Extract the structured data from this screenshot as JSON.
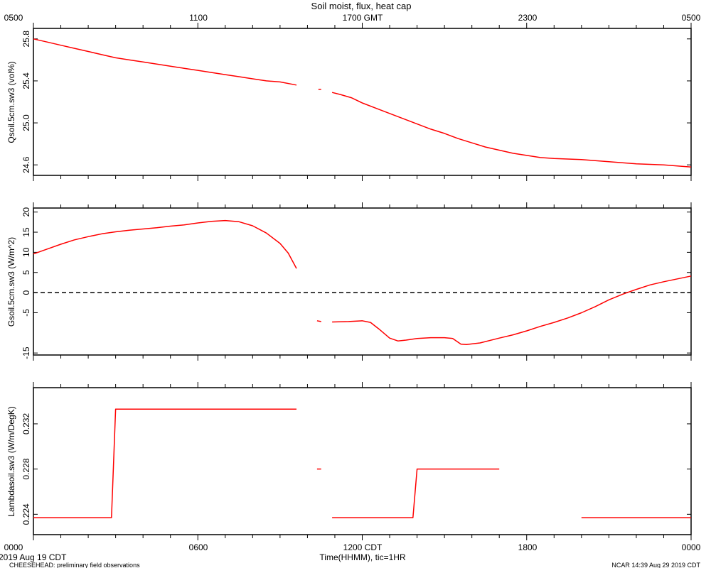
{
  "figure": {
    "title": "Soil moist, flux, heat cap",
    "top_ticks": [
      "0500",
      "1100",
      "1700 GMT",
      "2300",
      "0500"
    ],
    "bottom_ticks": [
      "0000",
      "0600",
      "1200 CDT",
      "1800",
      "0000"
    ],
    "xlabel": "Time(HHMM), tic=1HR",
    "date_label": "2019 Aug 19 CDT",
    "footer_left": "CHEESEHEAD: preliminary field observations",
    "footer_right": "NCAR 14:39 Aug 29 2019 CDT"
  },
  "colors": {
    "series": "#ff0000",
    "axis": "#000000",
    "zero_line": "#000000"
  },
  "chart_data": [
    {
      "type": "line",
      "ylabel": "Qsoil.5cm.sw3 (vol%)",
      "xlim": [
        0,
        24
      ],
      "ylim": [
        24.5,
        25.9
      ],
      "yticks": [
        24.6,
        25.0,
        25.4,
        25.8
      ],
      "ytick_labels": [
        "24.6",
        "25.0",
        "25.4",
        "25.8"
      ],
      "series": [
        {
          "segments": [
            [
              [
                0,
                25.8
              ],
              [
                0.5,
                25.77
              ],
              [
                1,
                25.74
              ],
              [
                1.5,
                25.71
              ],
              [
                2,
                25.68
              ],
              [
                2.5,
                25.65
              ],
              [
                3,
                25.62
              ],
              [
                3.5,
                25.6
              ],
              [
                4,
                25.58
              ],
              [
                4.5,
                25.56
              ],
              [
                5,
                25.54
              ],
              [
                5.5,
                25.52
              ],
              [
                6,
                25.5
              ],
              [
                6.5,
                25.48
              ],
              [
                7,
                25.46
              ],
              [
                7.5,
                25.44
              ],
              [
                8,
                25.42
              ],
              [
                8.5,
                25.4
              ],
              [
                9,
                25.39
              ],
              [
                9.6,
                25.36
              ]
            ],
            [
              [
                10.4,
                25.32
              ],
              [
                10.5,
                25.32
              ]
            ],
            [
              [
                10.9,
                25.29
              ],
              [
                11.2,
                25.27
              ],
              [
                11.6,
                25.24
              ],
              [
                12,
                25.19
              ],
              [
                12.5,
                25.14
              ],
              [
                13,
                25.09
              ],
              [
                13.5,
                25.04
              ],
              [
                14,
                24.99
              ],
              [
                14.5,
                24.94
              ],
              [
                15,
                24.9
              ],
              [
                15.5,
                24.85
              ],
              [
                16,
                24.81
              ],
              [
                16.5,
                24.77
              ],
              [
                17,
                24.74
              ],
              [
                17.5,
                24.71
              ],
              [
                18,
                24.69
              ],
              [
                18.5,
                24.67
              ],
              [
                19,
                24.66
              ],
              [
                20,
                24.65
              ],
              [
                21,
                24.63
              ],
              [
                22,
                24.61
              ],
              [
                23,
                24.6
              ],
              [
                24,
                24.58
              ]
            ]
          ]
        }
      ]
    },
    {
      "type": "line",
      "ylabel": "Gsoil.5cm.sw3 (W/m^2)",
      "xlim": [
        0,
        24
      ],
      "ylim": [
        -15.5,
        21
      ],
      "yticks": [
        -15,
        -5,
        0,
        5,
        10,
        15,
        20
      ],
      "ytick_labels": [
        "-15",
        "-5",
        "0",
        "5",
        "10",
        "15",
        "20"
      ],
      "zero_line": true,
      "series": [
        {
          "segments": [
            [
              [
                0,
                9.6
              ],
              [
                0.5,
                10.8
              ],
              [
                1,
                12
              ],
              [
                1.5,
                13.1
              ],
              [
                2,
                13.9
              ],
              [
                2.5,
                14.6
              ],
              [
                3,
                15.1
              ],
              [
                3.5,
                15.5
              ],
              [
                4,
                15.8
              ],
              [
                4.5,
                16.1
              ],
              [
                5,
                16.5
              ],
              [
                5.5,
                16.8
              ],
              [
                6,
                17.3
              ],
              [
                6.5,
                17.7
              ],
              [
                7,
                17.9
              ],
              [
                7.5,
                17.6
              ],
              [
                8,
                16.6
              ],
              [
                8.5,
                14.8
              ],
              [
                9,
                12.2
              ],
              [
                9.3,
                9.8
              ],
              [
                9.6,
                6
              ]
            ],
            [
              [
                10.35,
                -7
              ],
              [
                10.5,
                -7.2
              ]
            ],
            [
              [
                10.9,
                -7.3
              ],
              [
                11.5,
                -7.2
              ],
              [
                12,
                -7
              ],
              [
                12.3,
                -7.4
              ],
              [
                12.6,
                -9
              ],
              [
                13,
                -11.3
              ],
              [
                13.3,
                -12
              ],
              [
                13.6,
                -11.8
              ],
              [
                14,
                -11.4
              ],
              [
                14.5,
                -11.2
              ],
              [
                15,
                -11.2
              ],
              [
                15.3,
                -11.4
              ],
              [
                15.6,
                -12.8
              ],
              [
                15.8,
                -12.9
              ],
              [
                16.3,
                -12.5
              ],
              [
                17,
                -11.3
              ],
              [
                17.5,
                -10.5
              ],
              [
                18,
                -9.5
              ],
              [
                18.5,
                -8.4
              ],
              [
                19,
                -7.4
              ],
              [
                19.5,
                -6.3
              ],
              [
                20,
                -5
              ],
              [
                20.5,
                -3.5
              ],
              [
                21,
                -1.8
              ],
              [
                21.5,
                -0.4
              ],
              [
                22,
                0.8
              ],
              [
                22.5,
                1.9
              ],
              [
                23,
                2.7
              ],
              [
                23.5,
                3.4
              ],
              [
                24,
                4.1
              ]
            ]
          ]
        }
      ]
    },
    {
      "type": "line",
      "ylabel": "Lambdasoil.sw3 (W/m/DegK)",
      "xlim": [
        0,
        24
      ],
      "ylim": [
        0.2222,
        0.2352
      ],
      "yticks": [
        0.224,
        0.228,
        0.232
      ],
      "ytick_labels": [
        "0.224",
        "0.228",
        "0.232"
      ],
      "series": [
        {
          "segments": [
            [
              [
                0,
                0.2237
              ],
              [
                2.85,
                0.2237
              ],
              [
                3.0,
                0.2333
              ],
              [
                9.6,
                0.2333
              ]
            ],
            [
              [
                10.35,
                0.228
              ],
              [
                10.5,
                0.228
              ]
            ],
            [
              [
                10.9,
                0.2237
              ],
              [
                13.85,
                0.2237
              ],
              [
                14.0,
                0.228
              ],
              [
                17.0,
                0.228
              ]
            ],
            [
              [
                20.0,
                0.2237
              ],
              [
                24,
                0.2237
              ]
            ]
          ]
        }
      ]
    }
  ]
}
